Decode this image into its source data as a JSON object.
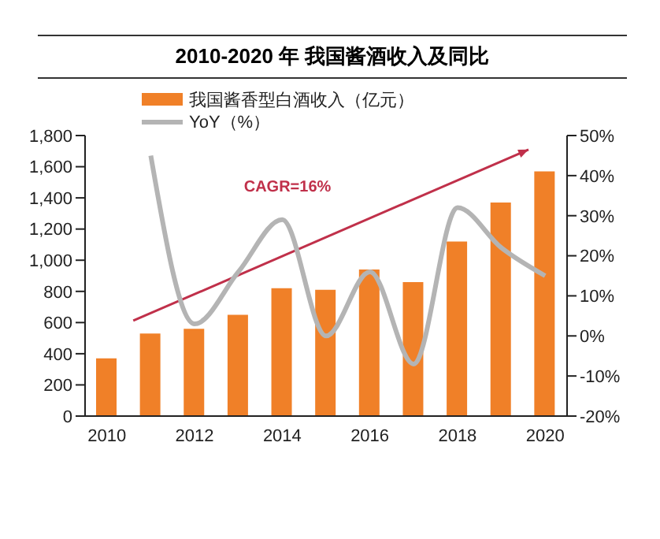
{
  "chart_data": {
    "type": "bar",
    "title": "2010-2020 年 我国酱酒收入及同比",
    "categories": [
      "2010",
      null,
      "2012",
      null,
      "2014",
      null,
      "2016",
      null,
      "2018",
      null,
      "2020"
    ],
    "series": [
      {
        "name": "我国酱香型白酒收入（亿元）",
        "color": "#f08028",
        "values": [
          370,
          530,
          560,
          650,
          820,
          810,
          940,
          860,
          1120,
          1370,
          1570
        ]
      },
      {
        "name": "YoY（%）",
        "type": "line",
        "axis": "y2",
        "color": "#b4b4b4",
        "values": [
          null,
          45,
          3,
          16,
          29,
          0,
          16,
          -7,
          32,
          22,
          15
        ]
      }
    ],
    "ylim": [
      0,
      1800
    ],
    "yticks": [
      0,
      200,
      400,
      600,
      800,
      {
        "value": 1000,
        "label": "1,000"
      },
      {
        "value": 1200,
        "label": "1,200"
      },
      {
        "value": 1400,
        "label": "1,400"
      },
      {
        "value": 1600,
        "label": "1,600"
      },
      {
        "value": 1800,
        "label": "1,800"
      }
    ],
    "y2lim": [
      -20,
      50
    ],
    "y2ticks": [
      {
        "value": -20,
        "label": "-20%"
      },
      {
        "value": -10,
        "label": "-10%"
      },
      {
        "value": 0,
        "label": "0%"
      },
      {
        "value": 10,
        "label": "10%"
      },
      {
        "value": 20,
        "label": "20%"
      },
      {
        "value": 30,
        "label": "30%"
      },
      {
        "value": 40,
        "label": "40%"
      },
      {
        "value": 50,
        "label": "50%"
      }
    ],
    "annotations": [
      "CAGR=16%"
    ],
    "legend": "top left",
    "marker": "none"
  }
}
